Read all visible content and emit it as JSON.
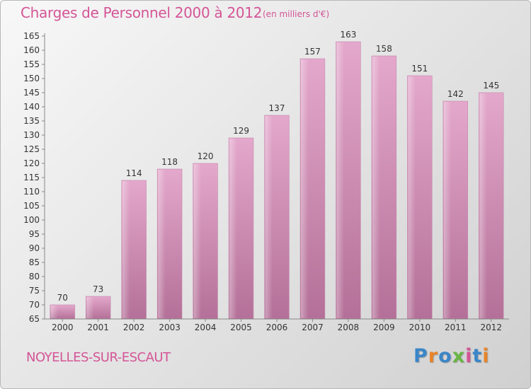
{
  "header": {
    "title": "Charges de Personnel 2000 à 2012",
    "subtitle": "(en milliers d'€)"
  },
  "footer": {
    "city": "NOYELLES-SUR-ESCAUT",
    "logo": [
      "P",
      "r",
      "o",
      "x",
      "i",
      "t",
      "i"
    ],
    "logo_colors": [
      "#3a86c8",
      "#e8842a",
      "#3a86c8",
      "#6ab545",
      "#d45596",
      "#3a86c8",
      "#e8842a"
    ]
  },
  "colors": {
    "bar_top": "#e4a8cc",
    "bar_bottom": "#b47098",
    "text": "#d45596",
    "axis_text": "#333333"
  },
  "chart_data": {
    "type": "bar",
    "title": "Charges de Personnel 2000 à 2012",
    "subtitle": "(en milliers d'€)",
    "categories": [
      "2000",
      "2001",
      "2002",
      "2003",
      "2004",
      "2005",
      "2006",
      "2007",
      "2008",
      "2009",
      "2010",
      "2011",
      "2012"
    ],
    "values": [
      70,
      73,
      114,
      118,
      120,
      129,
      137,
      157,
      163,
      158,
      151,
      142,
      145
    ],
    "ylim": [
      65,
      165
    ],
    "yticks": [
      65,
      70,
      75,
      80,
      85,
      90,
      95,
      100,
      105,
      110,
      115,
      120,
      125,
      130,
      135,
      140,
      145,
      150,
      155,
      160,
      165
    ],
    "grid": false,
    "data_labels": true
  }
}
